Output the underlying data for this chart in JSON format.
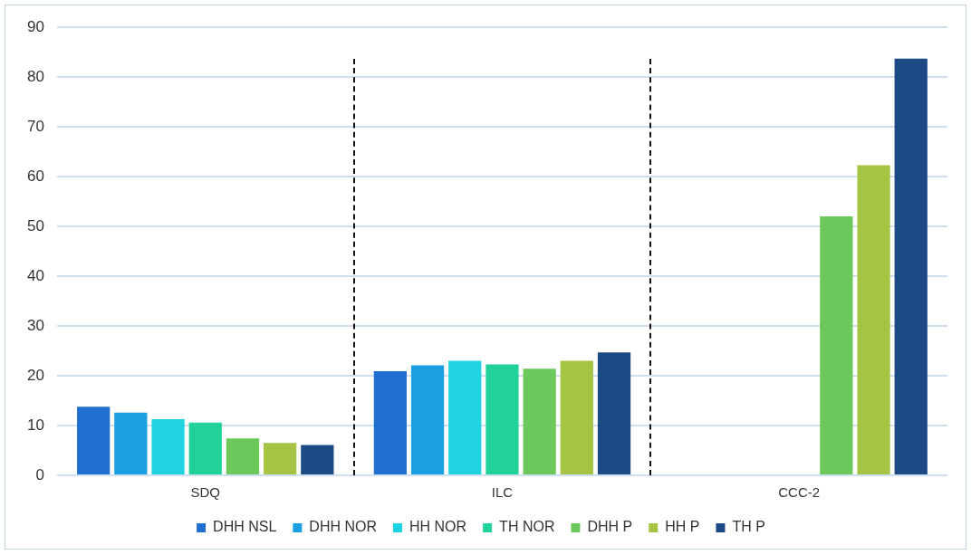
{
  "chart_data": {
    "type": "bar",
    "categories": [
      "SDQ",
      "ILC",
      "CCC-2"
    ],
    "series": [
      {
        "name": "DHH NSL",
        "color": "#1f6fd0",
        "values": [
          13.8,
          20.9,
          null
        ]
      },
      {
        "name": "DHH NOR",
        "color": "#1aa0e0",
        "values": [
          12.6,
          22.1,
          null
        ]
      },
      {
        "name": "HH NOR",
        "color": "#20d3e0",
        "values": [
          11.3,
          23,
          null
        ]
      },
      {
        "name": "TH NOR",
        "color": "#20d29a",
        "values": [
          10.6,
          22.3,
          null
        ]
      },
      {
        "name": "DHH P",
        "color": "#6cc85a",
        "values": [
          7.4,
          21.4,
          52
        ]
      },
      {
        "name": "HH P",
        "color": "#a6c444",
        "values": [
          6.5,
          23,
          62.3
        ]
      },
      {
        "name": "TH P",
        "color": "#1c4a85",
        "values": [
          6.1,
          24.7,
          83.7
        ]
      }
    ],
    "ylim": [
      0,
      90
    ],
    "yticks": [
      0,
      10,
      20,
      30,
      40,
      50,
      60,
      70,
      80,
      90
    ],
    "grid": "y",
    "legend": "bottom"
  }
}
